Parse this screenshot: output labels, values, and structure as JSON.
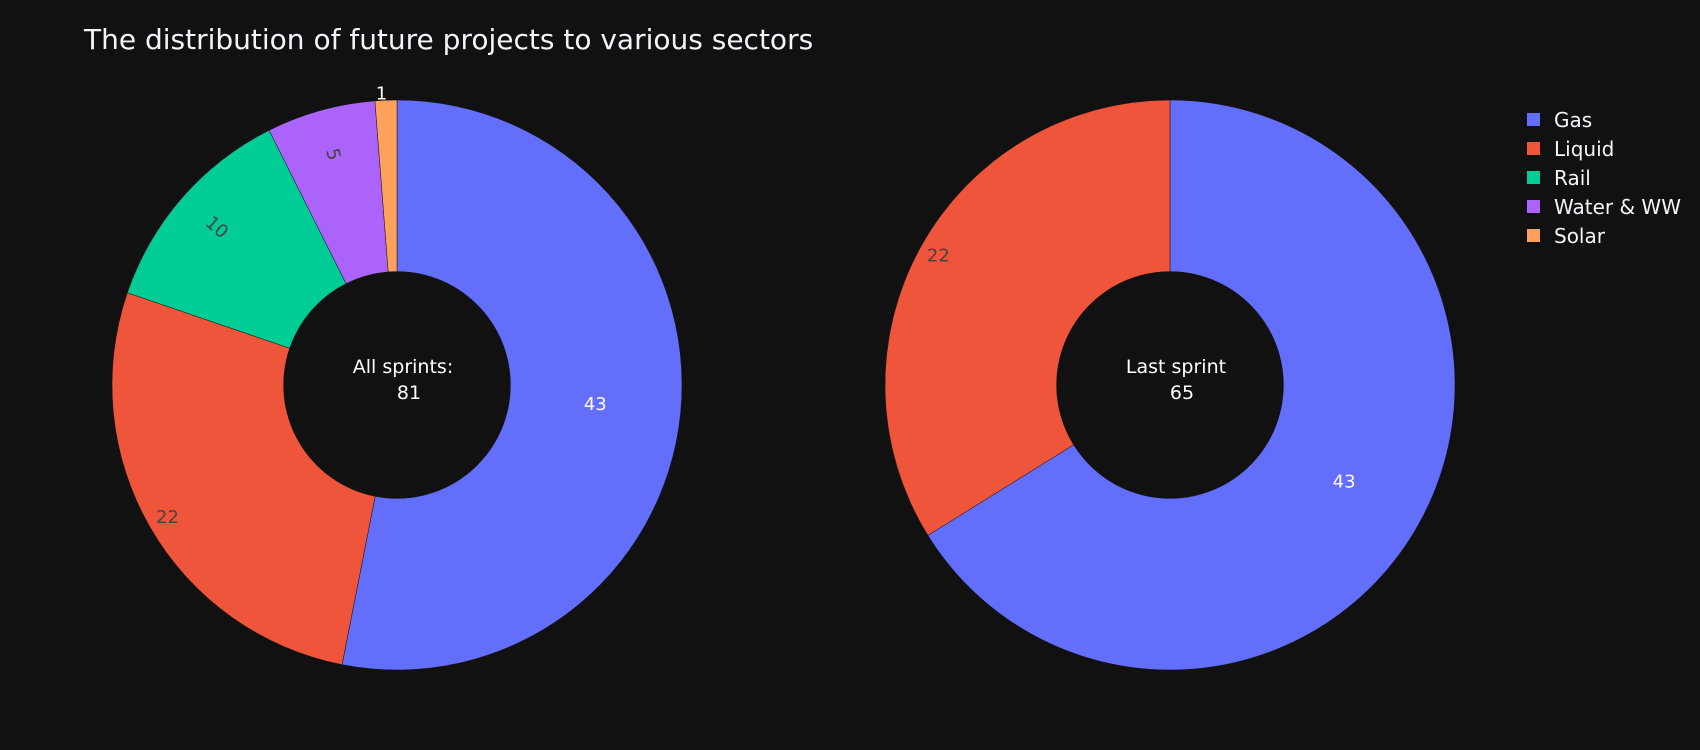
{
  "chart_data": {
    "type": "pie",
    "title": "The distribution of future projects to various sectors",
    "legend_position": "top-right",
    "legend": [
      {
        "name": "Gas",
        "color": "#636efa"
      },
      {
        "name": "Liquid",
        "color": "#ef553b"
      },
      {
        "name": "Rail",
        "color": "#00cc96"
      },
      {
        "name": "Water & WW",
        "color": "#ab63fa"
      },
      {
        "name": "Solar",
        "color": "#ffa15a"
      }
    ],
    "charts": [
      {
        "center_label": [
          "All sprints:",
          "81"
        ],
        "hole": 0.4,
        "slices": [
          {
            "label": "Gas",
            "value": 43
          },
          {
            "label": "Liquid",
            "value": 22
          },
          {
            "label": "Rail",
            "value": 10
          },
          {
            "label": "Water & WW",
            "value": 5
          },
          {
            "label": "Solar",
            "value": 1
          }
        ]
      },
      {
        "center_label": [
          "Last sprint",
          "65"
        ],
        "hole": 0.4,
        "slices": [
          {
            "label": "Gas",
            "value": 43
          },
          {
            "label": "Liquid",
            "value": 22
          }
        ]
      }
    ]
  }
}
